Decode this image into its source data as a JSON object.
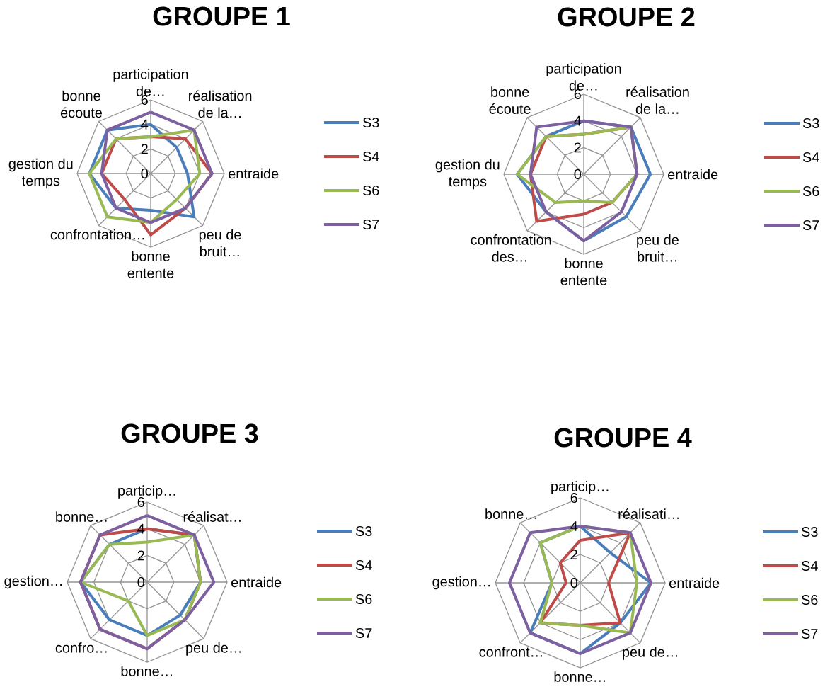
{
  "chart_data": [
    {
      "type": "radar",
      "title": "GROUPE 1",
      "categories": [
        "participation de…",
        "réalisation de la…",
        "entraide",
        "peu de bruit…",
        "bonne entente",
        "confrontation…",
        "gestion du temps",
        "bonne écoute"
      ],
      "series": [
        {
          "name": "S3",
          "color": "#4a7ebb",
          "values": [
            4,
            3,
            3,
            5,
            3,
            4,
            5,
            5
          ]
        },
        {
          "name": "S4",
          "color": "#be4b48",
          "values": [
            3,
            4,
            5,
            4,
            5,
            3,
            4,
            4
          ]
        },
        {
          "name": "S6",
          "color": "#98b954",
          "values": [
            3,
            5,
            4,
            3,
            4,
            5,
            5,
            4
          ]
        },
        {
          "name": "S7",
          "color": "#7d60a0",
          "values": [
            5,
            5,
            5,
            4,
            4,
            4,
            4,
            5
          ]
        }
      ],
      "ylim": [
        0,
        6
      ],
      "yticks": [
        0,
        2,
        4,
        6
      ],
      "grid": true,
      "legend": "right"
    },
    {
      "type": "radar",
      "title": "GROUPE 2",
      "categories": [
        "participation de…",
        "réalisation de la…",
        "entraide",
        "peu de bruit…",
        "bonne entente",
        "confrontation des…",
        "gestion du temps",
        "bonne écoute"
      ],
      "series": [
        {
          "name": "S3",
          "color": "#4a7ebb",
          "values": [
            4,
            5,
            5,
            4.5,
            5,
            4,
            5,
            4
          ]
        },
        {
          "name": "S4",
          "color": "#be4b48",
          "values": [
            3,
            5,
            4,
            3,
            3,
            5,
            4,
            4
          ]
        },
        {
          "name": "S6",
          "color": "#98b954",
          "values": [
            3,
            5,
            4,
            3,
            2,
            3,
            5,
            4
          ]
        },
        {
          "name": "S7",
          "color": "#7d60a0",
          "values": [
            4,
            5,
            4,
            4,
            5,
            4,
            4,
            5
          ]
        }
      ],
      "ylim": [
        0,
        6
      ],
      "yticks": [
        0,
        2,
        4,
        6
      ],
      "grid": true,
      "legend": "right"
    },
    {
      "type": "radar",
      "title": "GROUPE 3",
      "categories": [
        "particip…",
        "réalisat…",
        "entraide",
        "peu de…",
        "bonne…",
        "confro…",
        "gestion…",
        "bonne…"
      ],
      "series": [
        {
          "name": "S3",
          "color": "#4a7ebb",
          "values": [
            4,
            5,
            4,
            3.5,
            4,
            4,
            5,
            4
          ]
        },
        {
          "name": "S4",
          "color": "#be4b48",
          "values": [
            4,
            5,
            4,
            4,
            5,
            5,
            5,
            5
          ]
        },
        {
          "name": "S6",
          "color": "#98b954",
          "values": [
            3,
            5,
            4,
            4,
            4,
            2,
            5,
            4
          ]
        },
        {
          "name": "S7",
          "color": "#7d60a0",
          "values": [
            5,
            5,
            5,
            4,
            5,
            5,
            5,
            5
          ]
        }
      ],
      "ylim": [
        0,
        6
      ],
      "yticks": [
        0,
        2,
        4,
        6
      ],
      "grid": true,
      "legend": "right"
    },
    {
      "type": "radar",
      "title": "GROUPE 4",
      "categories": [
        "particip…",
        "réalisati…",
        "entraide",
        "peu de…",
        "bonne…",
        "confront…",
        "gestion…",
        "bonne…"
      ],
      "series": [
        {
          "name": "S3",
          "color": "#4a7ebb",
          "values": [
            4,
            3,
            5,
            4,
            5,
            5,
            2,
            4
          ]
        },
        {
          "name": "S4",
          "color": "#be4b48",
          "values": [
            3,
            5,
            2,
            4,
            3,
            4,
            1,
            2
          ]
        },
        {
          "name": "S6",
          "color": "#98b954",
          "values": [
            4,
            5,
            4,
            5,
            3,
            4,
            2,
            4
          ]
        },
        {
          "name": "S7",
          "color": "#7d60a0",
          "values": [
            4,
            5,
            5,
            5,
            5,
            5,
            5,
            5
          ]
        }
      ],
      "ylim": [
        0,
        6
      ],
      "yticks": [
        0,
        2,
        4,
        6
      ],
      "grid": true,
      "legend": "right"
    }
  ]
}
